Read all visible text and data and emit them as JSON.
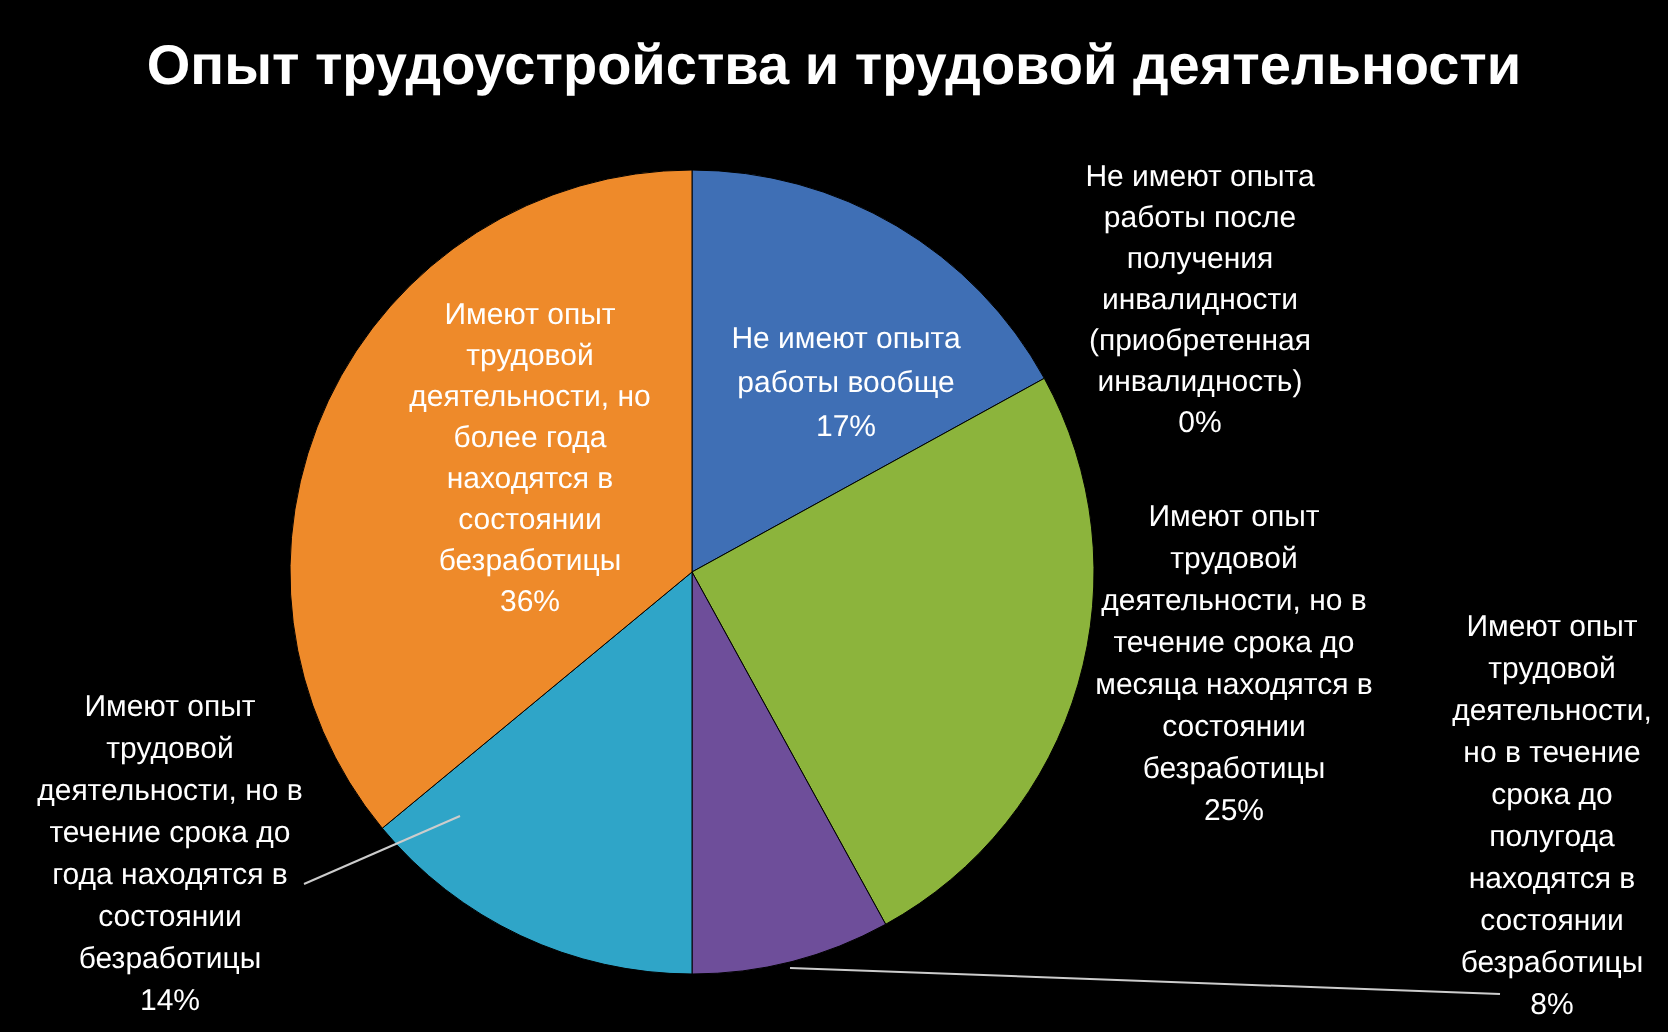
{
  "chart_data": {
    "type": "pie",
    "title": "Опыт трудоустройства и трудовой деятельности",
    "categories": [
      "Не имеют опыта\nработы вообще",
      "Не имеют опыта\nработы после\nполучения\nинвалидности\n(приобретенная\nинвалидность)",
      "Имеют опыт\nтрудовой\nдеятельности, но в\nтечение срока до\nмесяца находятся в\nсостоянии\nбезработицы",
      "Имеют опыт\nтрудовой\nдеятельности,\nно в течение\nсрока до\nполугода\nнаходятся в\nсостоянии\nбезработицы",
      "Имеют опыт\nтрудовой\nдеятельности, но в\nтечение срока до\nгода находятся в\nсостоянии\nбезработицы",
      "Имеют опыт\nтрудовой\nдеятельности, но\nболее года\nнаходятся в\nсостоянии\nбезработицы"
    ],
    "values": [
      17,
      0,
      25,
      8,
      14,
      36
    ],
    "value_labels": [
      "17%",
      "0%",
      "25%",
      "8%",
      "14%",
      "36%"
    ],
    "colors": [
      "#3f6fb5",
      null,
      "#8cb43c",
      "#6e4e9a",
      "#2fa5c8",
      "#ee8a2a"
    ]
  }
}
